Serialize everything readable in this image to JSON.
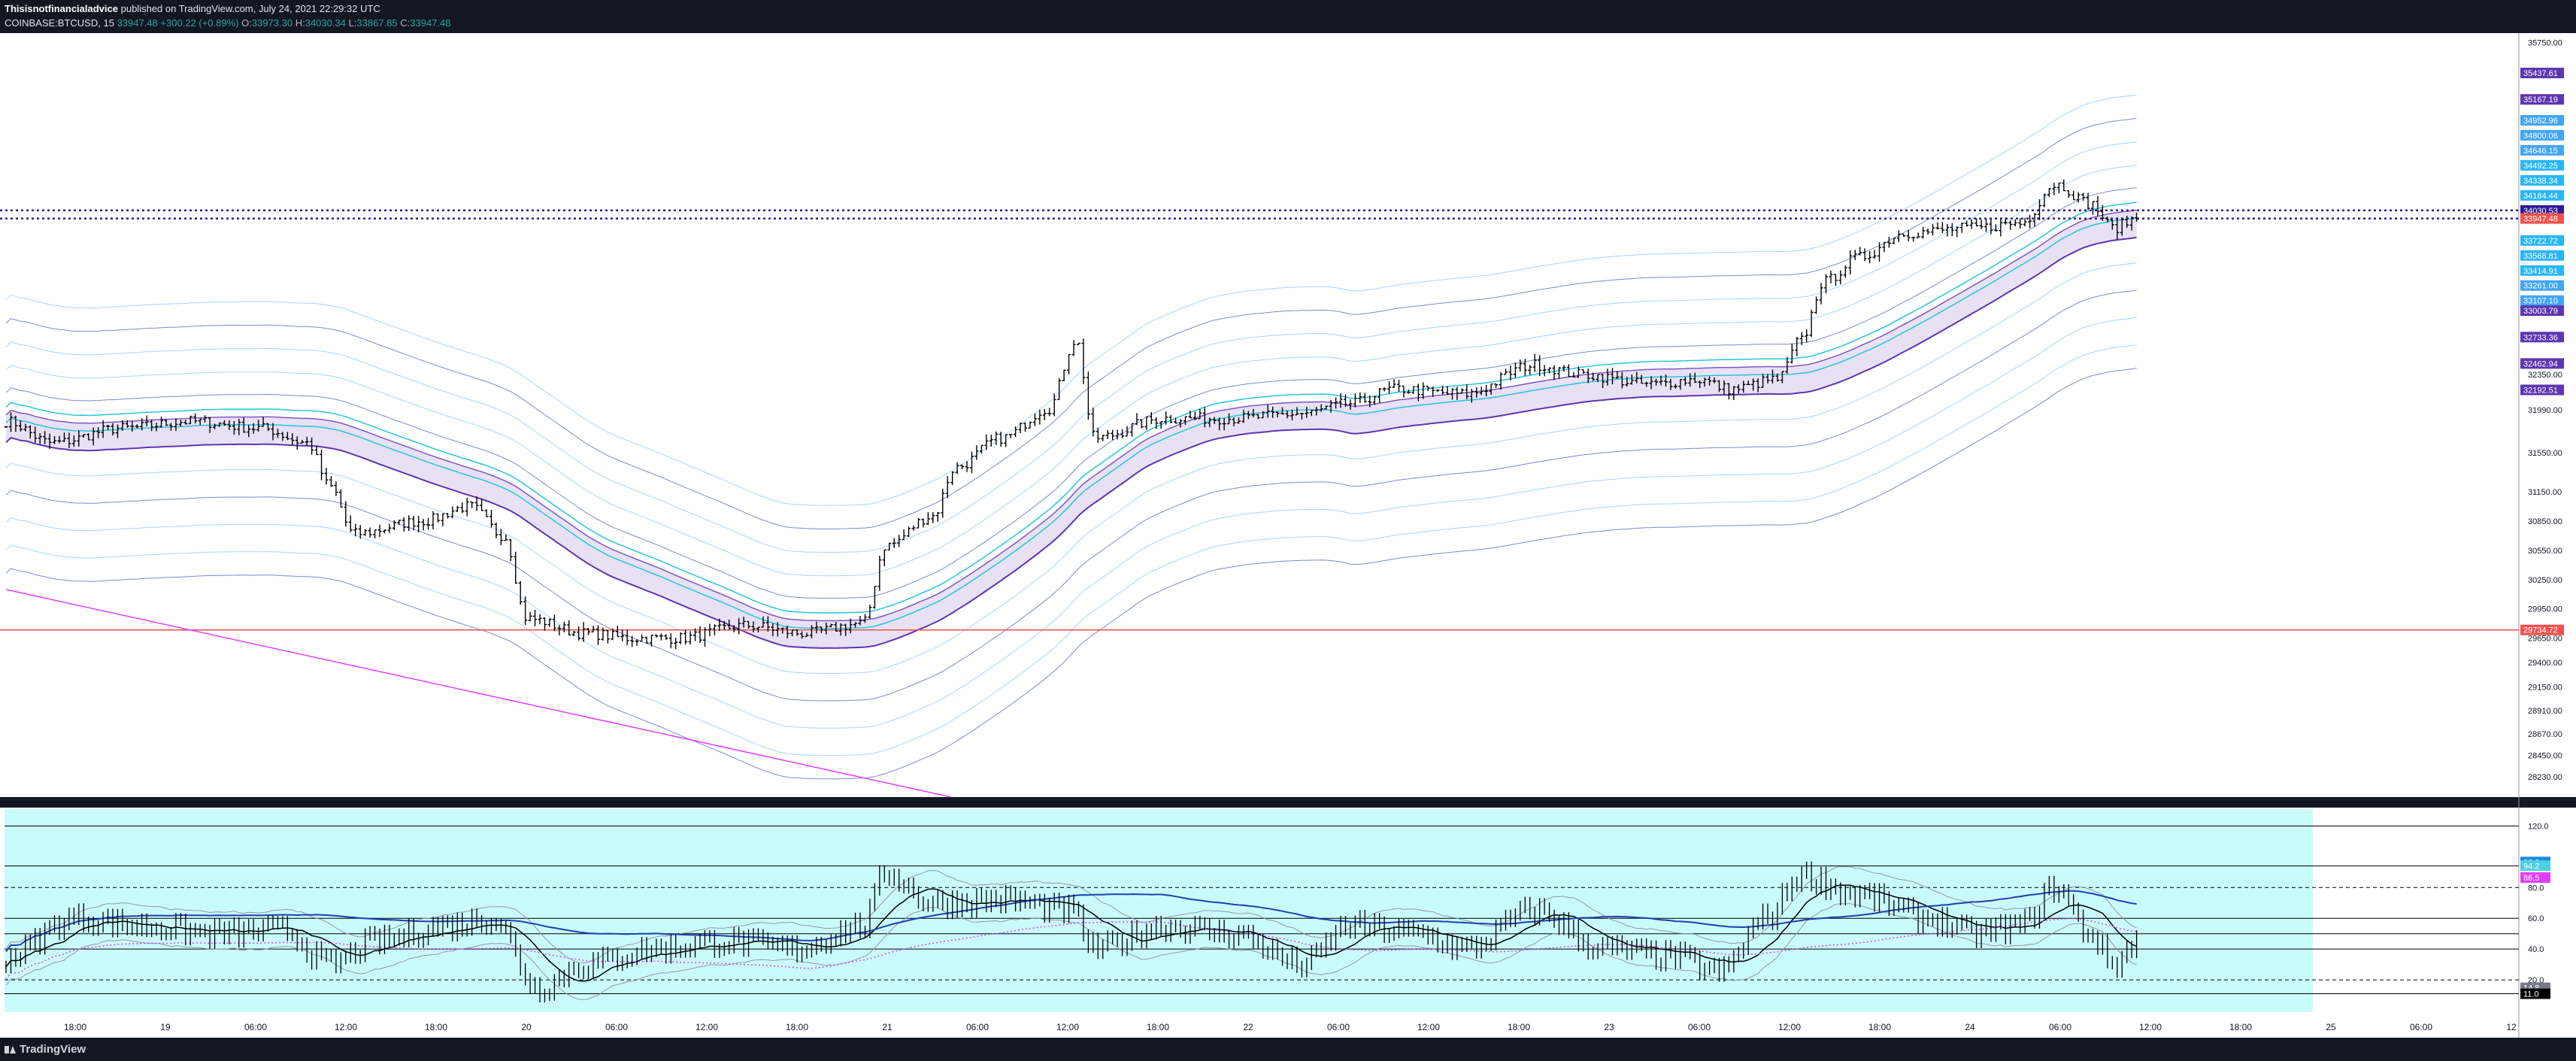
{
  "header": {
    "author": "Thisisnotfinancialadvice",
    "published": " published on TradingView.com, July 24, 2021 22:29:32 UTC",
    "symbol": "COINBASE:BTCUSD, 15",
    "last": "33947.48",
    "change": "+300.22 (+0.89%)",
    "o_label": "O:",
    "o_value": "33973.30",
    "h_label": "H:",
    "h_value": "34030.34",
    "l_label": "L:",
    "l_value": "33867.85",
    "c_label": "C:",
    "c_value": "33947.48"
  },
  "footer": {
    "brand": "TradingView",
    "icon": "tradingview-logo-icon"
  },
  "colors": {
    "background": "#131722",
    "chart_bg": "#ffffff",
    "osc_bg": "#c9fbfb",
    "price_line": "#ef5350",
    "dotted_line": "#311b92",
    "band_fill": "#d1c4e9",
    "magenta": "#e040fb"
  },
  "chart_data": {
    "type": "line",
    "symbol": "COINBASE:BTCUSD",
    "interval": "15",
    "ylim": [
      28100,
      35800
    ],
    "time_axis": [
      "18:00",
      "19",
      "06:00",
      "12:00",
      "18:00",
      "20",
      "06:00",
      "12:00",
      "18:00",
      "21",
      "06:00",
      "12:00",
      "18:00",
      "22",
      "06:00",
      "12:00",
      "18:00",
      "23",
      "06:00",
      "12:00",
      "18:00",
      "24",
      "06:00",
      "12:00",
      "18:00",
      "25",
      "06:00",
      "12"
    ],
    "price_ticks": [
      "35750.00",
      "32350.00",
      "31990.00",
      "31550.00",
      "31150.00",
      "30850.00",
      "30550.00",
      "30250.00",
      "29950.00",
      "29650.00",
      "29400.00",
      "29150.00",
      "28910.00",
      "28670.00",
      "28450.00",
      "28230.00"
    ],
    "price_labels": [
      {
        "text": "35437.61",
        "value": 35437.61,
        "color": "#5e35b1"
      },
      {
        "text": "35167.19",
        "value": 35167.19,
        "color": "#5e35b1"
      },
      {
        "text": "34952.96",
        "value": 34952.96,
        "color": "#42a5f5"
      },
      {
        "text": "34800.06",
        "value": 34800.06,
        "color": "#42a5f5"
      },
      {
        "text": "34646.15",
        "value": 34646.15,
        "color": "#42a5f5"
      },
      {
        "text": "34492.25",
        "value": 34492.25,
        "color": "#29b6f6"
      },
      {
        "text": "34338.34",
        "value": 34338.34,
        "color": "#29b6f6"
      },
      {
        "text": "34184.44",
        "value": 34184.44,
        "color": "#29b6f6"
      },
      {
        "text": "34030.53",
        "value": 34030.53,
        "color": "#311b92"
      },
      {
        "text": "33947.48",
        "value": 33947.48,
        "color": "#ef5350"
      },
      {
        "text": "33722.72",
        "value": 33722.72,
        "color": "#29b6f6"
      },
      {
        "text": "33568.81",
        "value": 33568.81,
        "color": "#29b6f6"
      },
      {
        "text": "33414.91",
        "value": 33414.91,
        "color": "#29b6f6"
      },
      {
        "text": "33261.00",
        "value": 33261.0,
        "color": "#42a5f5"
      },
      {
        "text": "33107.10",
        "value": 33107.1,
        "color": "#42a5f5"
      },
      {
        "text": "33003.79",
        "value": 33003.79,
        "color": "#5e35b1"
      },
      {
        "text": "32733.36",
        "value": 32733.36,
        "color": "#5e35b1"
      },
      {
        "text": "32462.94",
        "value": 32462.94,
        "color": "#5e35b1"
      },
      {
        "text": "32192.51",
        "value": 32192.51,
        "color": "#5e35b1"
      },
      {
        "text": "29734.72",
        "value": 29734.72,
        "color": "#ef5350"
      }
    ],
    "red_level": 29734.72,
    "dotted_levels": [
      34030.53,
      33947.48
    ],
    "osc_ylim": [
      0,
      130
    ],
    "osc_ticks": [
      "120.0",
      "80.0",
      "60.0",
      "40.0",
      "20.0"
    ],
    "osc_labels": [
      {
        "text": "96.6",
        "value": 96.6,
        "color": "#1e88e5"
      },
      {
        "text": "94.2",
        "value": 94.2,
        "color": "#4dd0e1"
      },
      {
        "text": "86.5",
        "value": 86.5,
        "color": "#e040fb"
      },
      {
        "text": "14.8",
        "value": 14.8,
        "color": "#787b86"
      },
      {
        "text": "11.1",
        "value": 11.1,
        "color": "#b2b5be"
      },
      {
        "text": "11.0",
        "value": 11.0,
        "color": "#000000"
      }
    ],
    "close_anchors": [
      [
        0,
        31870
      ],
      [
        0.02,
        31650
      ],
      [
        0.05,
        31800
      ],
      [
        0.08,
        31870
      ],
      [
        0.11,
        31800
      ],
      [
        0.13,
        31650
      ],
      [
        0.14,
        31200
      ],
      [
        0.15,
        30720
      ],
      [
        0.18,
        30850
      ],
      [
        0.2,
        31000
      ],
      [
        0.215,
        30700
      ],
      [
        0.225,
        29850
      ],
      [
        0.25,
        29700
      ],
      [
        0.27,
        29650
      ],
      [
        0.29,
        29650
      ],
      [
        0.32,
        29780
      ],
      [
        0.345,
        29700
      ],
      [
        0.37,
        29800
      ],
      [
        0.38,
        30600
      ],
      [
        0.4,
        30900
      ],
      [
        0.41,
        31400
      ],
      [
        0.43,
        31700
      ],
      [
        0.45,
        32000
      ],
      [
        0.462,
        32700
      ],
      [
        0.47,
        31700
      ],
      [
        0.5,
        31900
      ],
      [
        0.53,
        31900
      ],
      [
        0.56,
        31950
      ],
      [
        0.58,
        32050
      ],
      [
        0.6,
        32200
      ],
      [
        0.63,
        32150
      ],
      [
        0.66,
        32450
      ],
      [
        0.68,
        32350
      ],
      [
        0.71,
        32250
      ],
      [
        0.73,
        32300
      ],
      [
        0.745,
        32200
      ],
      [
        0.765,
        32300
      ],
      [
        0.775,
        32700
      ],
      [
        0.785,
        33300
      ],
      [
        0.8,
        33550
      ],
      [
        0.82,
        33800
      ],
      [
        0.85,
        33850
      ],
      [
        0.87,
        33900
      ],
      [
        0.885,
        34300
      ],
      [
        0.9,
        34100
      ],
      [
        0.91,
        33850
      ],
      [
        0.92,
        33950
      ]
    ],
    "osc_anchors": [
      [
        0,
        35
      ],
      [
        0.03,
        60
      ],
      [
        0.06,
        55
      ],
      [
        0.09,
        50
      ],
      [
        0.12,
        52
      ],
      [
        0.14,
        30
      ],
      [
        0.16,
        45
      ],
      [
        0.19,
        55
      ],
      [
        0.21,
        60
      ],
      [
        0.23,
        15
      ],
      [
        0.25,
        30
      ],
      [
        0.28,
        40
      ],
      [
        0.31,
        45
      ],
      [
        0.34,
        40
      ],
      [
        0.37,
        55
      ],
      [
        0.38,
        90
      ],
      [
        0.4,
        70
      ],
      [
        0.43,
        72
      ],
      [
        0.46,
        65
      ],
      [
        0.47,
        40
      ],
      [
        0.5,
        55
      ],
      [
        0.53,
        50
      ],
      [
        0.56,
        30
      ],
      [
        0.58,
        55
      ],
      [
        0.61,
        50
      ],
      [
        0.63,
        40
      ],
      [
        0.66,
        65
      ],
      [
        0.69,
        40
      ],
      [
        0.72,
        35
      ],
      [
        0.74,
        25
      ],
      [
        0.76,
        60
      ],
      [
        0.775,
        88
      ],
      [
        0.8,
        75
      ],
      [
        0.83,
        60
      ],
      [
        0.85,
        50
      ],
      [
        0.87,
        55
      ],
      [
        0.885,
        80
      ],
      [
        0.9,
        50
      ],
      [
        0.91,
        30
      ],
      [
        0.92,
        45
      ]
    ]
  }
}
